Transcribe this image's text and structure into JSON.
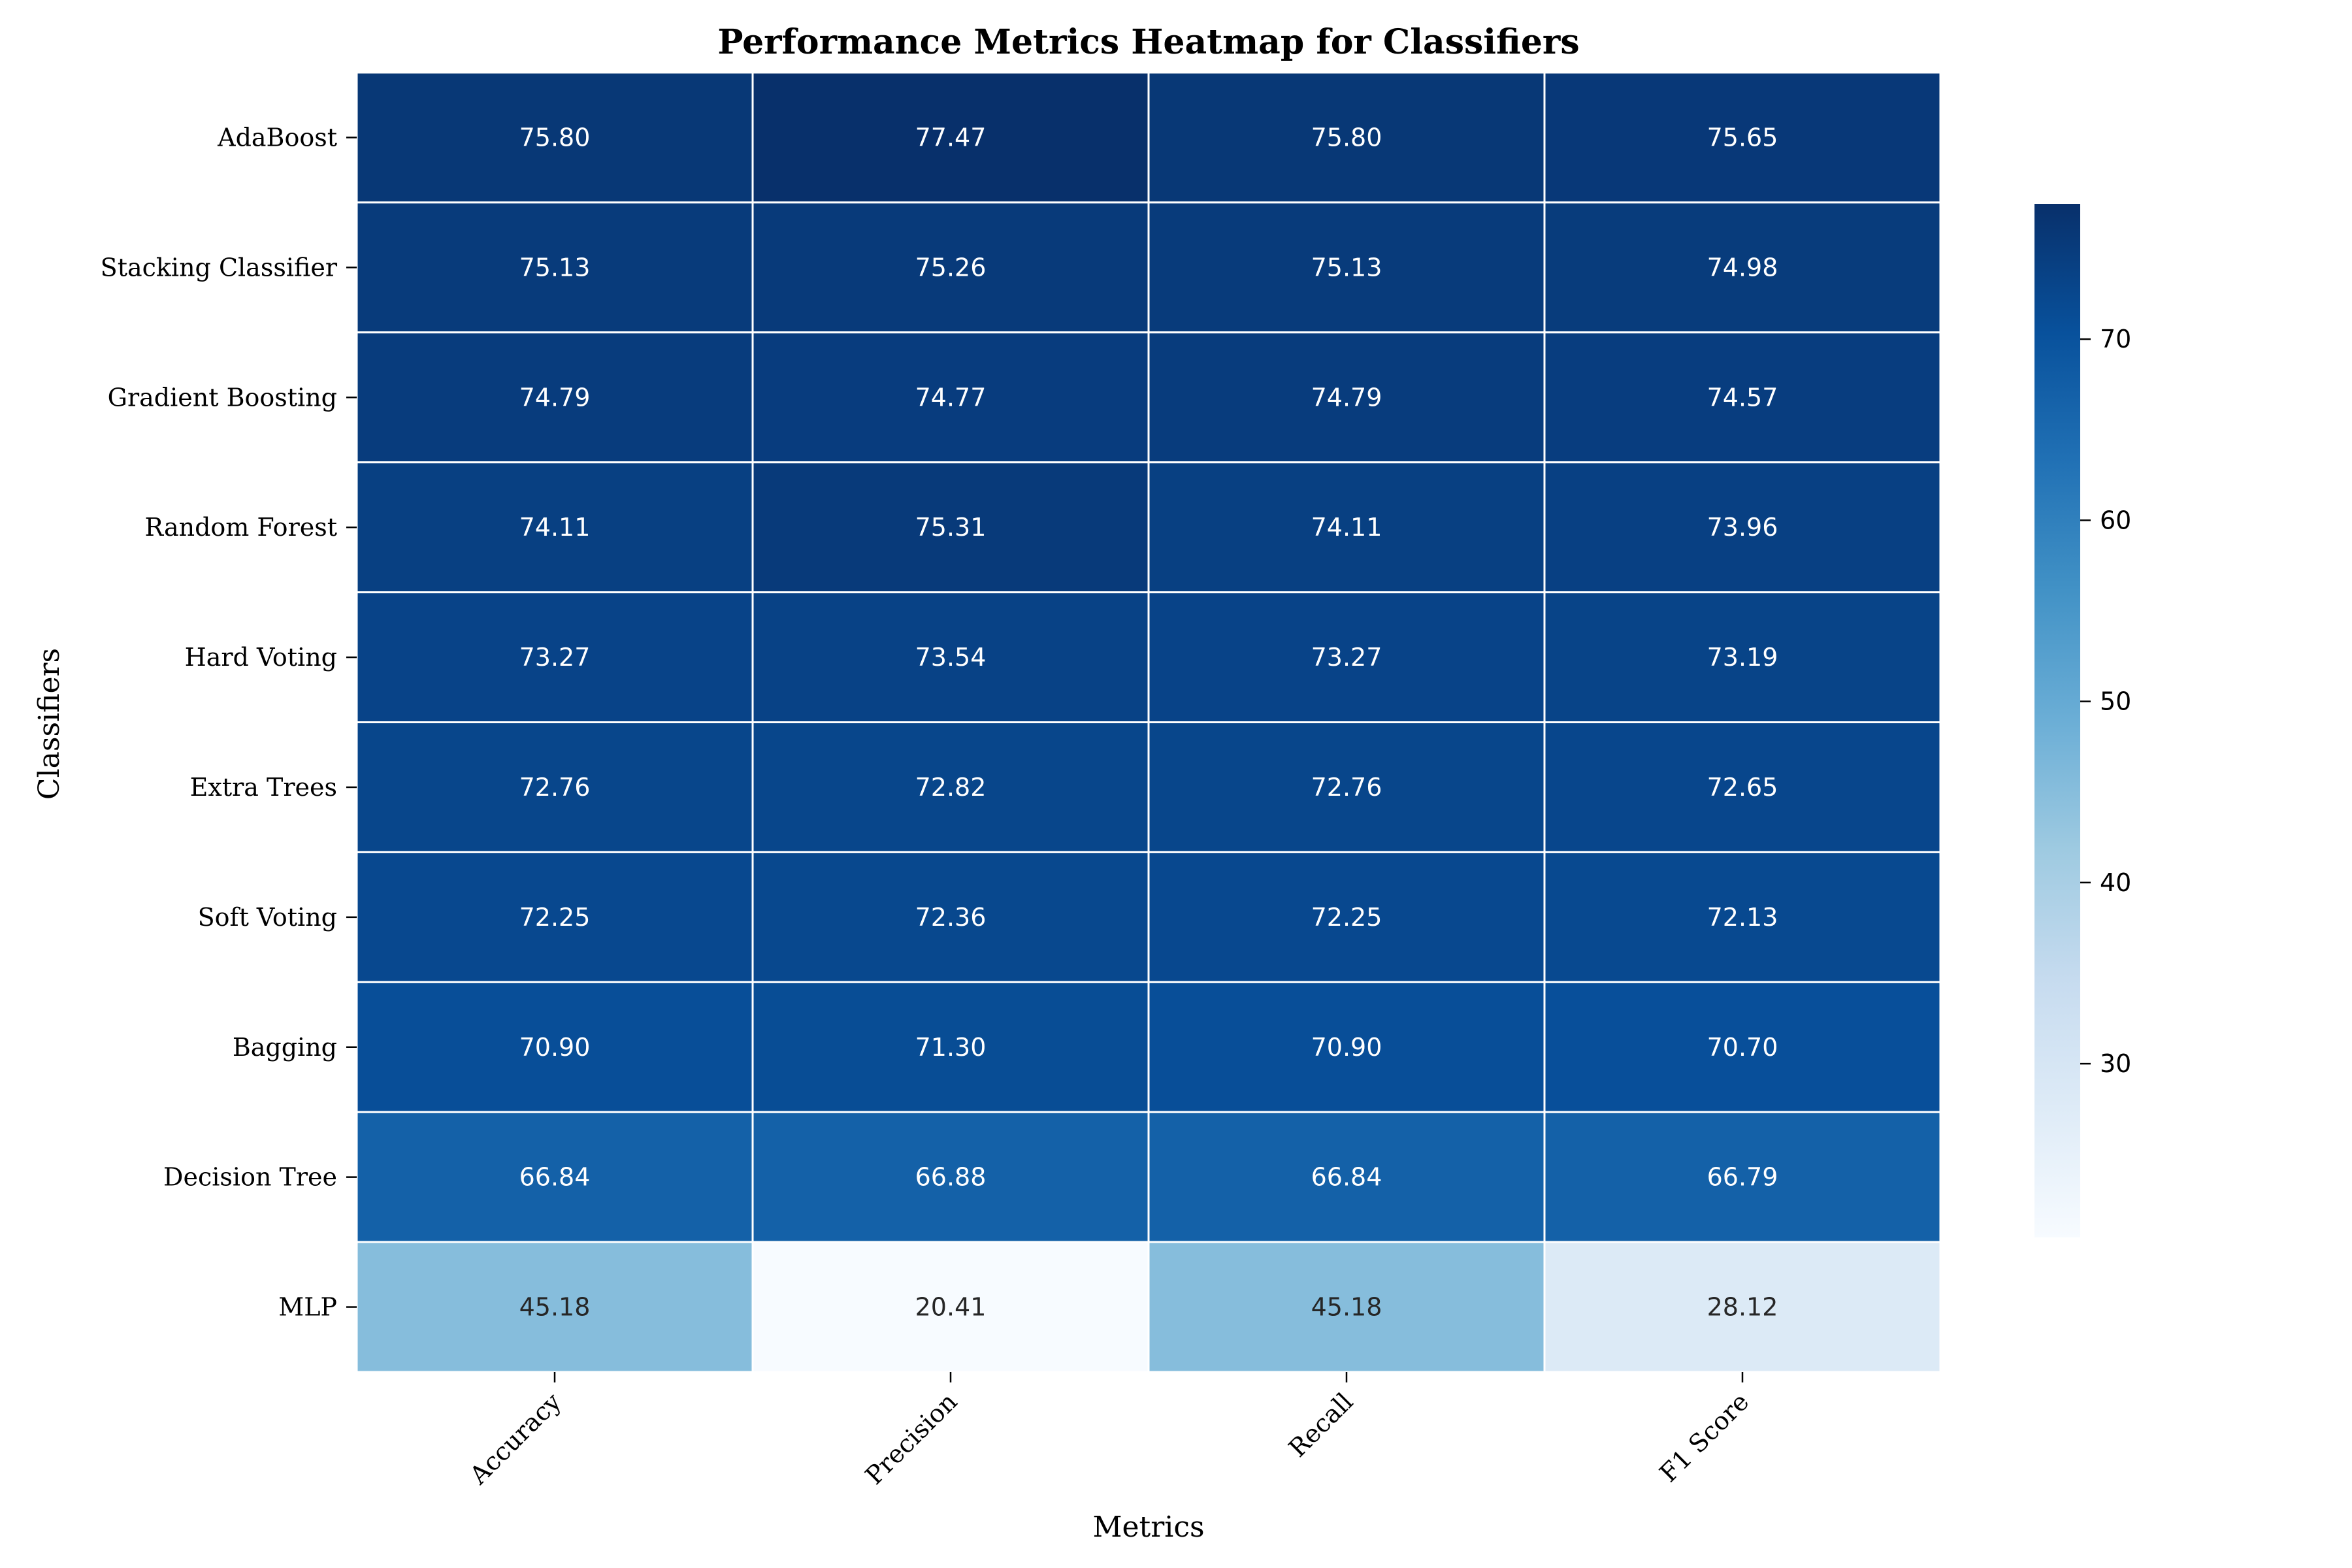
{
  "chart_data": {
    "type": "heatmap",
    "title": "Performance Metrics Heatmap for Classifiers",
    "xlabel": "Metrics",
    "ylabel": "Classifiers",
    "columns": [
      "Accuracy",
      "Precision",
      "Recall",
      "F1 Score"
    ],
    "rows": [
      "AdaBoost",
      "Stacking Classifier",
      "Gradient Boosting",
      "Random Forest",
      "Hard Voting",
      "Extra Trees",
      "Soft Voting",
      "Bagging",
      "Decision Tree",
      "MLP"
    ],
    "values": [
      [
        75.8,
        77.47,
        75.8,
        75.65
      ],
      [
        75.13,
        75.26,
        75.13,
        74.98
      ],
      [
        74.79,
        74.77,
        74.79,
        74.57
      ],
      [
        74.11,
        75.31,
        74.11,
        73.96
      ],
      [
        73.27,
        73.54,
        73.27,
        73.19
      ],
      [
        72.76,
        72.82,
        72.76,
        72.65
      ],
      [
        72.25,
        72.36,
        72.25,
        72.13
      ],
      [
        70.9,
        71.3,
        70.9,
        70.7
      ],
      [
        66.84,
        66.88,
        66.84,
        66.79
      ],
      [
        45.18,
        20.41,
        45.18,
        28.12
      ]
    ],
    "value_format": "2 decimals",
    "colormap": "Blues",
    "colorbar": {
      "range": [
        20.41,
        77.47
      ],
      "ticks": [
        30,
        40,
        50,
        60,
        70
      ]
    },
    "grid": false,
    "cell_border_color": "#ffffff",
    "xtick_rotation": "45 degrees"
  }
}
